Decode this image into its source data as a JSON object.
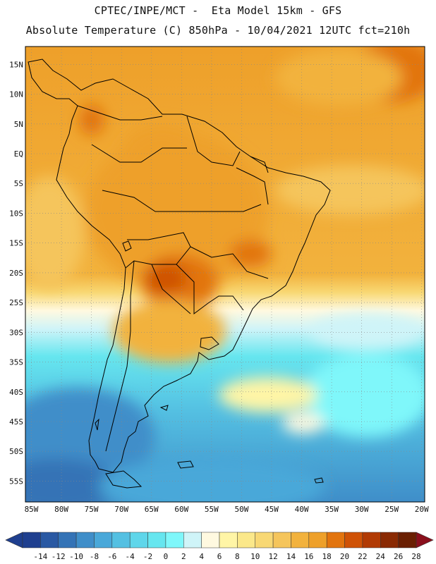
{
  "header": {
    "line1": "CPTEC/INPE/MCT -  Eta Model 15km - GFS",
    "line2": "Absolute Temperature (C) 850hPa - 10/04/2021 12UTC fct=210h"
  },
  "map": {
    "region": "South America",
    "lat_labels": [
      "15N",
      "10N",
      "5N",
      "EQ",
      "5S",
      "10S",
      "15S",
      "20S",
      "25S",
      "30S",
      "35S",
      "40S",
      "45S",
      "50S",
      "55S"
    ],
    "lat_values": [
      15,
      10,
      5,
      0,
      -5,
      -10,
      -15,
      -20,
      -25,
      -30,
      -35,
      -40,
      -45,
      -50,
      -55
    ],
    "lon_labels": [
      "85W",
      "80W",
      "75W",
      "70W",
      "65W",
      "60W",
      "55W",
      "50W",
      "45W",
      "40W",
      "35W",
      "30W",
      "25W",
      "20W"
    ],
    "lon_values": [
      -85,
      -80,
      -75,
      -70,
      -65,
      -60,
      -55,
      -50,
      -45,
      -40,
      -35,
      -30,
      -25,
      -20
    ],
    "grid": true,
    "grid_style": "dotted"
  },
  "colorbar": {
    "ticks": [
      "-14",
      "-12",
      "-10",
      "-8",
      "-6",
      "-4",
      "-2",
      "0",
      "2",
      "4",
      "6",
      "8",
      "10",
      "12",
      "14",
      "16",
      "18",
      "20",
      "22",
      "24",
      "26",
      "28"
    ],
    "colors": [
      "#1f3f8f",
      "#2a59a3",
      "#3473b6",
      "#3f8ec9",
      "#49a8d9",
      "#54c0e2",
      "#5fd6ea",
      "#66e6ef",
      "#7ff7fa",
      "#cff4f8",
      "#fff9e0",
      "#fff5a6",
      "#fbe88a",
      "#f8d874",
      "#f5c55c",
      "#f2b23d",
      "#eea02a",
      "#e2740e",
      "#cf5206",
      "#b13a04",
      "#8a2a03",
      "#6a1f02"
    ],
    "extend": "both"
  }
}
